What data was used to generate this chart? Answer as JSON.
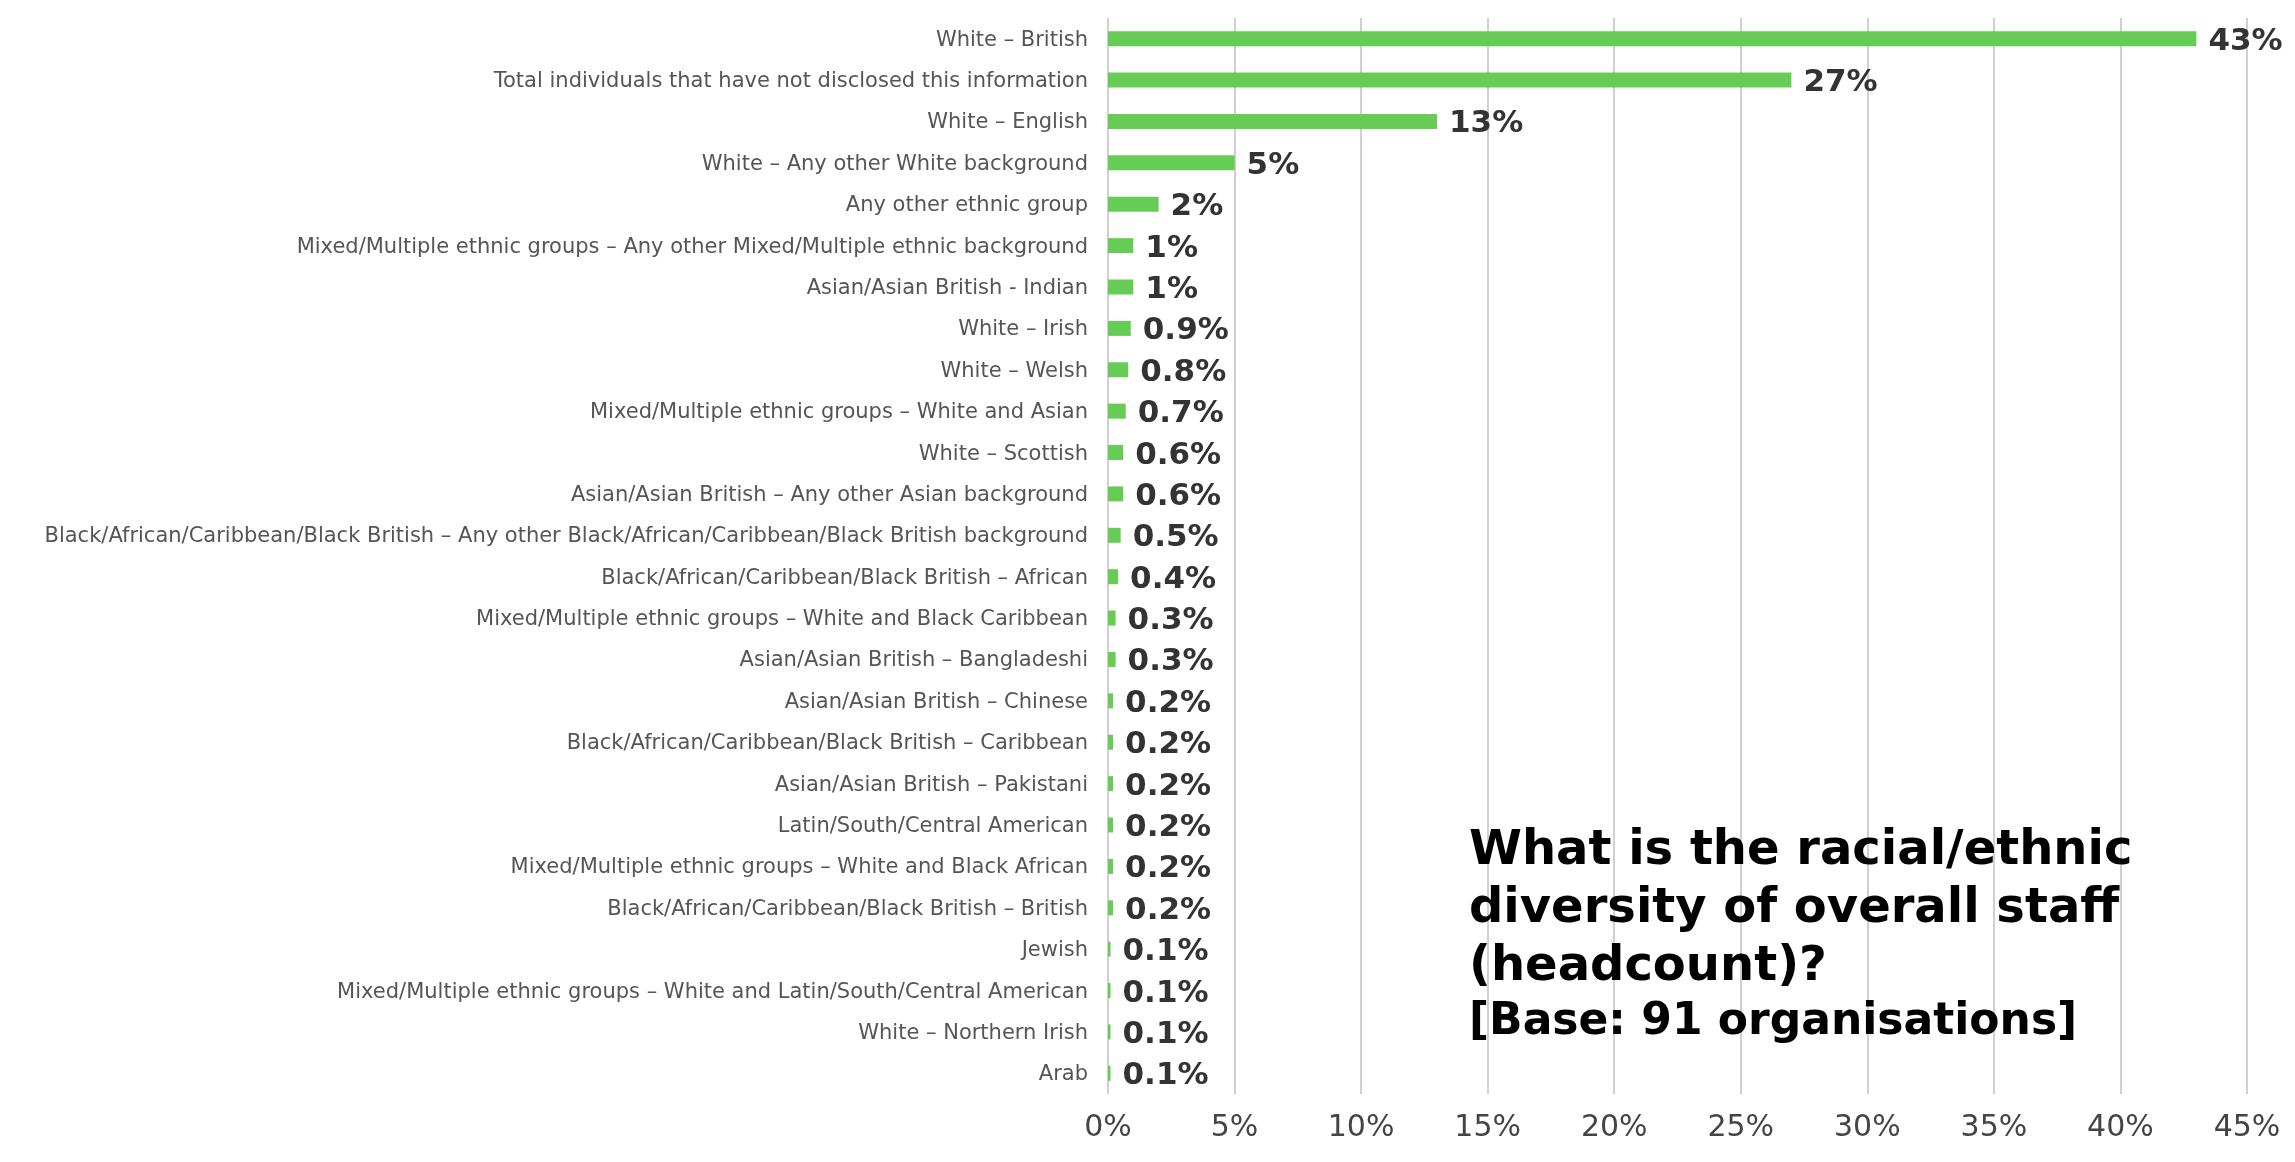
{
  "chart_data": {
    "type": "bar",
    "orientation": "horizontal",
    "title": "What is the racial/ethnic diversity of overall staff (headcount)?",
    "subtitle": "[Base: 91 organisations]",
    "categories": [
      "White – British",
      "Total individuals that have not disclosed this information",
      "White – English",
      "White – Any other White background",
      "Any other ethnic group",
      "Mixed/Multiple ethnic groups – Any other Mixed/Multiple ethnic background",
      "Asian/Asian British - Indian",
      "White – Irish",
      "White – Welsh",
      "Mixed/Multiple ethnic groups – White and Asian",
      "White – Scottish",
      "Asian/Asian British – Any other Asian background",
      "Black/African/Caribbean/Black British – Any other Black/African/Caribbean/Black British background",
      "Black/African/Caribbean/Black British – African",
      "Mixed/Multiple ethnic groups – White and Black Caribbean",
      "Asian/Asian British – Bangladeshi",
      "Asian/Asian British – Chinese",
      "Black/African/Caribbean/Black British – Caribbean",
      "Asian/Asian British – Pakistani",
      "Latin/South/Central American",
      "Mixed/Multiple ethnic groups – White and Black African",
      "Black/African/Caribbean/Black British – British",
      "Jewish",
      "Mixed/Multiple ethnic groups – White and Latin/South/Central American",
      "White – Northern Irish",
      "Arab"
    ],
    "values": [
      43,
      27,
      13,
      5,
      2,
      1,
      1,
      0.9,
      0.8,
      0.7,
      0.6,
      0.6,
      0.5,
      0.4,
      0.3,
      0.3,
      0.2,
      0.2,
      0.2,
      0.2,
      0.2,
      0.2,
      0.1,
      0.1,
      0.1,
      0.1
    ],
    "value_labels": [
      "43%",
      "27%",
      "13%",
      "5%",
      "2%",
      "1%",
      "1%",
      "0.9%",
      "0.8%",
      "0.7%",
      "0.6%",
      "0.6%",
      "0.5%",
      "0.4%",
      "0.3%",
      "0.3%",
      "0.2%",
      "0.2%",
      "0.2%",
      "0.2%",
      "0.2%",
      "0.2%",
      "0.1%",
      "0.1%",
      "0.1%",
      "0.1%"
    ],
    "color": "#66cc55",
    "xlim": [
      0,
      45
    ],
    "xticks": [
      {
        "value": 0,
        "label": "0%"
      },
      {
        "value": 5,
        "label": "5%"
      },
      {
        "value": 10,
        "label": "10%"
      },
      {
        "value": 15,
        "label": "15%"
      },
      {
        "value": 20,
        "label": "20%"
      },
      {
        "value": 25,
        "label": "25%"
      },
      {
        "value": 30,
        "label": "30%"
      },
      {
        "value": 35,
        "label": "35%"
      },
      {
        "value": 40,
        "label": "40%"
      },
      {
        "value": 45,
        "label": "45%"
      }
    ],
    "grid": "x"
  }
}
